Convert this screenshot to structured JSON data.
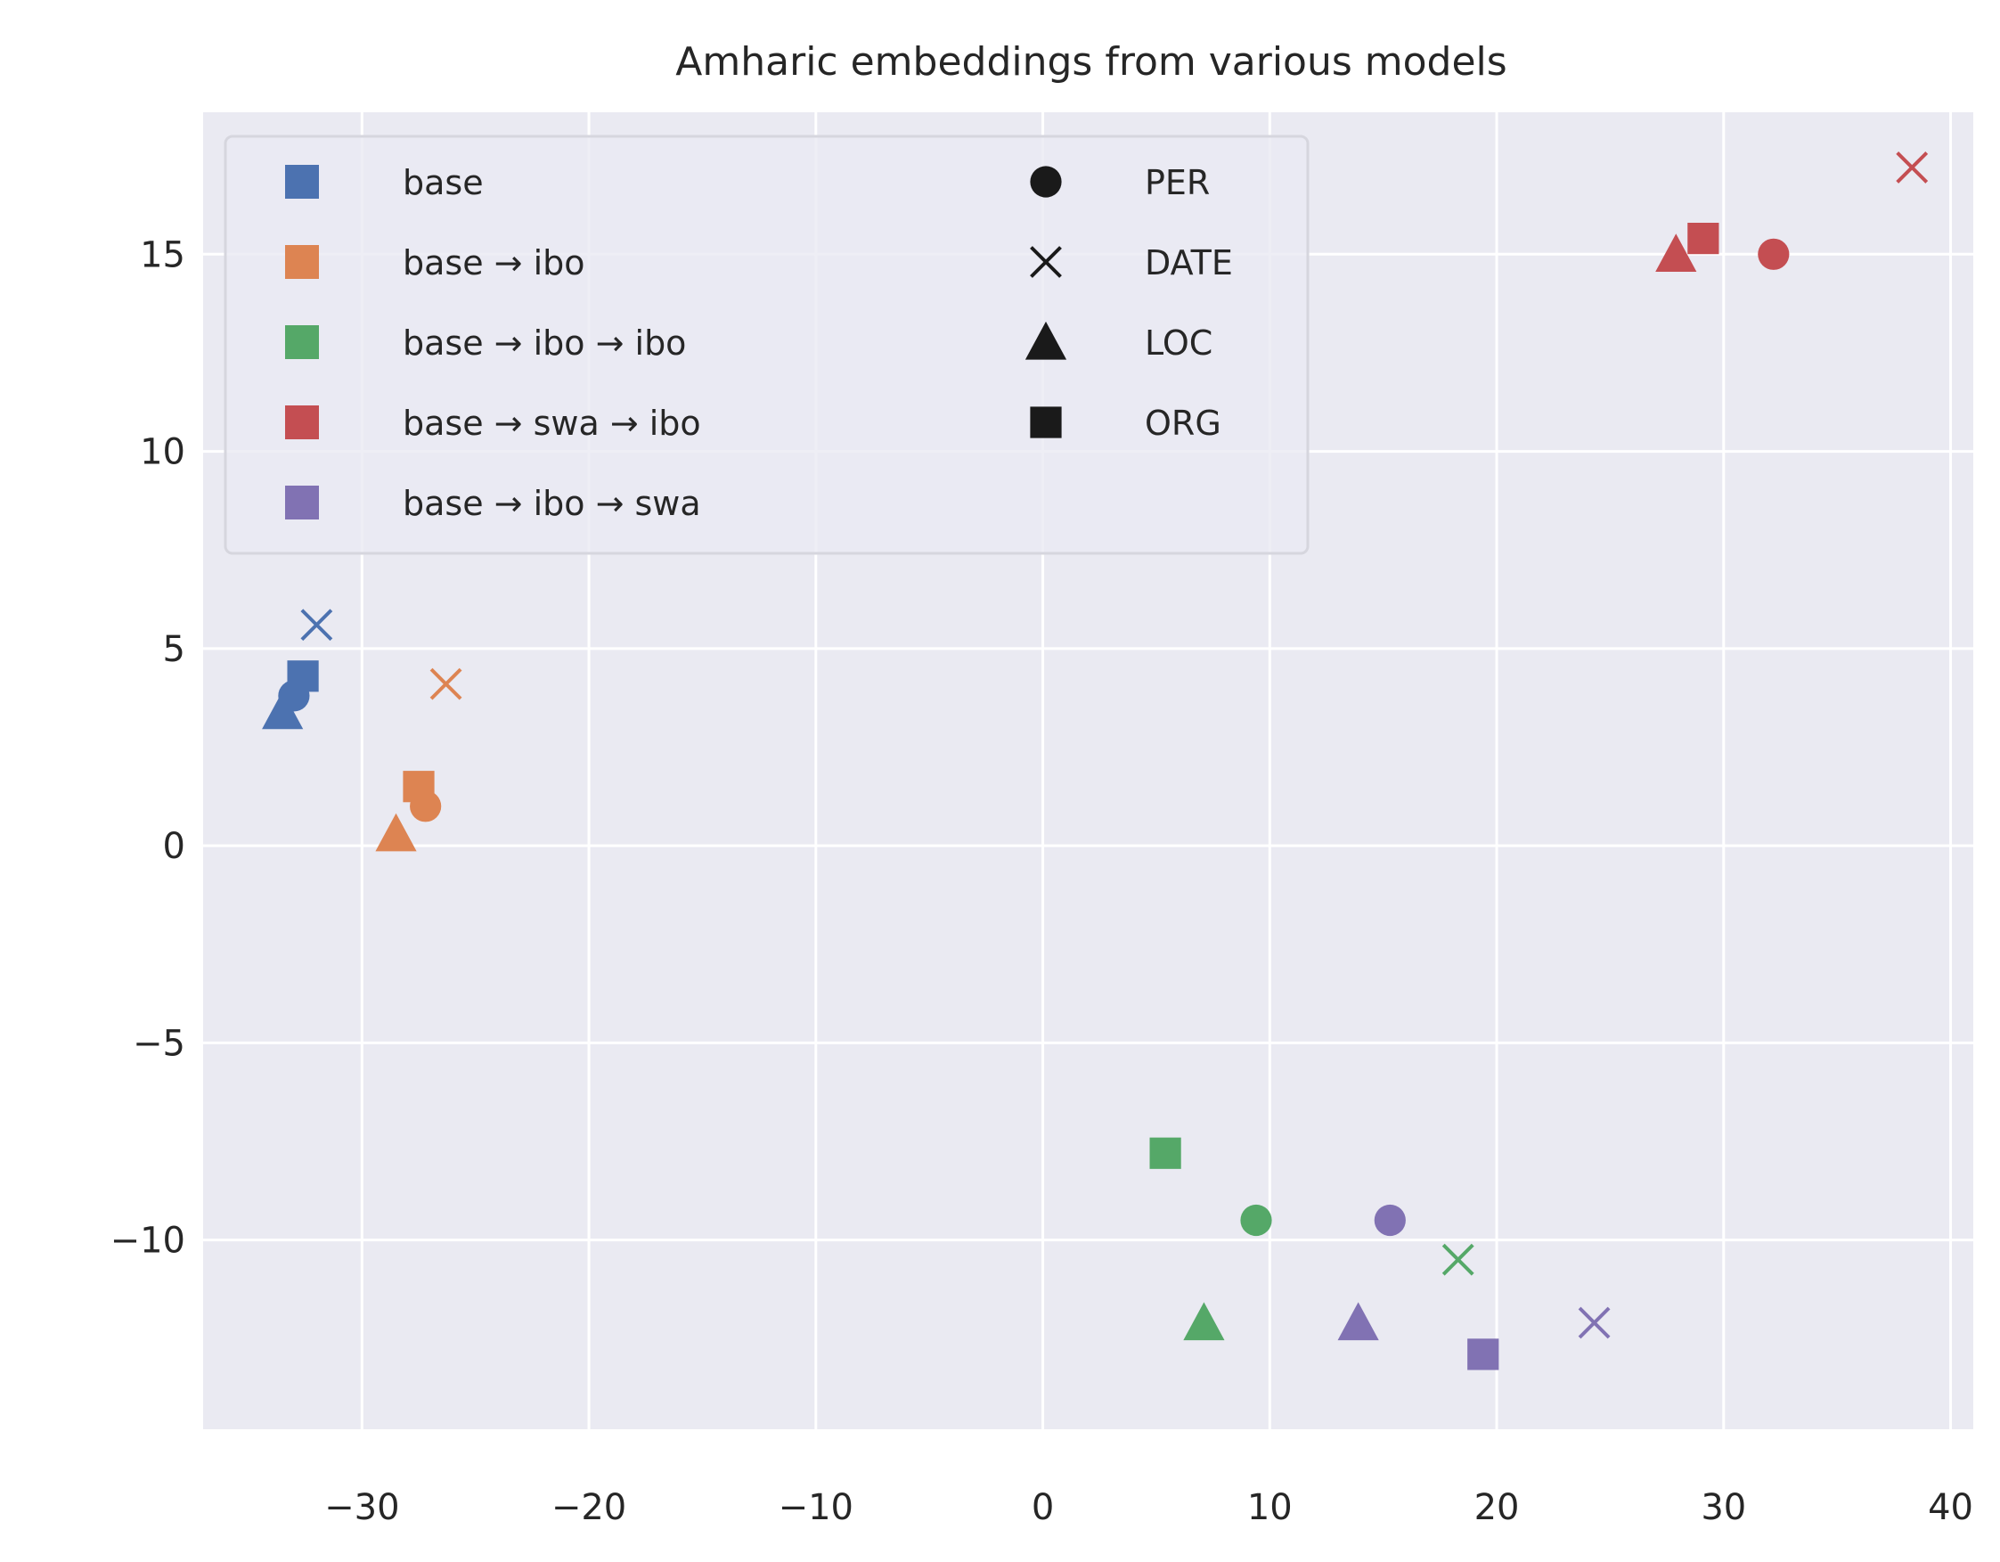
{
  "chart_data": {
    "type": "scatter",
    "title": "Amharic embeddings from various models",
    "xlabel": "",
    "ylabel": "",
    "xlim": [
      -37,
      41
    ],
    "ylim": [
      -14.8,
      18.6
    ],
    "x_ticks": [
      -30,
      -20,
      -10,
      0,
      10,
      20,
      30,
      40
    ],
    "y_ticks": [
      -10,
      -5,
      0,
      5,
      10,
      15
    ],
    "x_tick_labels": [
      "−30",
      "−20",
      "−10",
      "0",
      "10",
      "20",
      "30",
      "40"
    ],
    "y_tick_labels": [
      "−10",
      "−5",
      "0",
      "5",
      "10",
      "15"
    ],
    "grid": true,
    "legend_position": "top-left",
    "background_color": "#eaeaf2",
    "grid_color": "#ffffff",
    "marker_legend": [
      {
        "label": "PER",
        "marker": "circle"
      },
      {
        "label": "DATE",
        "marker": "x"
      },
      {
        "label": "LOC",
        "marker": "triangle"
      },
      {
        "label": "ORG",
        "marker": "square"
      }
    ],
    "series": [
      {
        "name": "base",
        "color": "#4c72b0",
        "points": [
          {
            "label": "PER",
            "x": -33.0,
            "y": 3.8
          },
          {
            "label": "DATE",
            "x": -32.0,
            "y": 5.6
          },
          {
            "label": "LOC",
            "x": -33.5,
            "y": 3.4
          },
          {
            "label": "ORG",
            "x": -32.6,
            "y": 4.3
          }
        ]
      },
      {
        "name": "base → ibo",
        "color": "#dd8452",
        "points": [
          {
            "label": "PER",
            "x": -27.2,
            "y": 1.0
          },
          {
            "label": "DATE",
            "x": -26.3,
            "y": 4.1
          },
          {
            "label": "LOC",
            "x": -28.5,
            "y": 0.3
          },
          {
            "label": "ORG",
            "x": -27.5,
            "y": 1.5
          }
        ]
      },
      {
        "name": "base → ibo → ibo",
        "color": "#55a868",
        "points": [
          {
            "label": "PER",
            "x": 9.4,
            "y": -9.5
          },
          {
            "label": "DATE",
            "x": 18.3,
            "y": -10.5
          },
          {
            "label": "LOC",
            "x": 7.1,
            "y": -12.1
          },
          {
            "label": "ORG",
            "x": 5.4,
            "y": -7.8
          }
        ]
      },
      {
        "name": "base → swa → ibo",
        "color": "#c44e52",
        "points": [
          {
            "label": "PER",
            "x": 32.2,
            "y": 15.0
          },
          {
            "label": "DATE",
            "x": 38.3,
            "y": 17.2
          },
          {
            "label": "LOC",
            "x": 27.9,
            "y": 15.0
          },
          {
            "label": "ORG",
            "x": 29.1,
            "y": 15.4
          }
        ]
      },
      {
        "name": "base → ibo → swa",
        "color": "#8172b3",
        "points": [
          {
            "label": "PER",
            "x": 15.3,
            "y": -9.5
          },
          {
            "label": "DATE",
            "x": 24.3,
            "y": -12.1
          },
          {
            "label": "LOC",
            "x": 13.9,
            "y": -12.1
          },
          {
            "label": "ORG",
            "x": 19.4,
            "y": -12.9
          }
        ]
      }
    ]
  }
}
